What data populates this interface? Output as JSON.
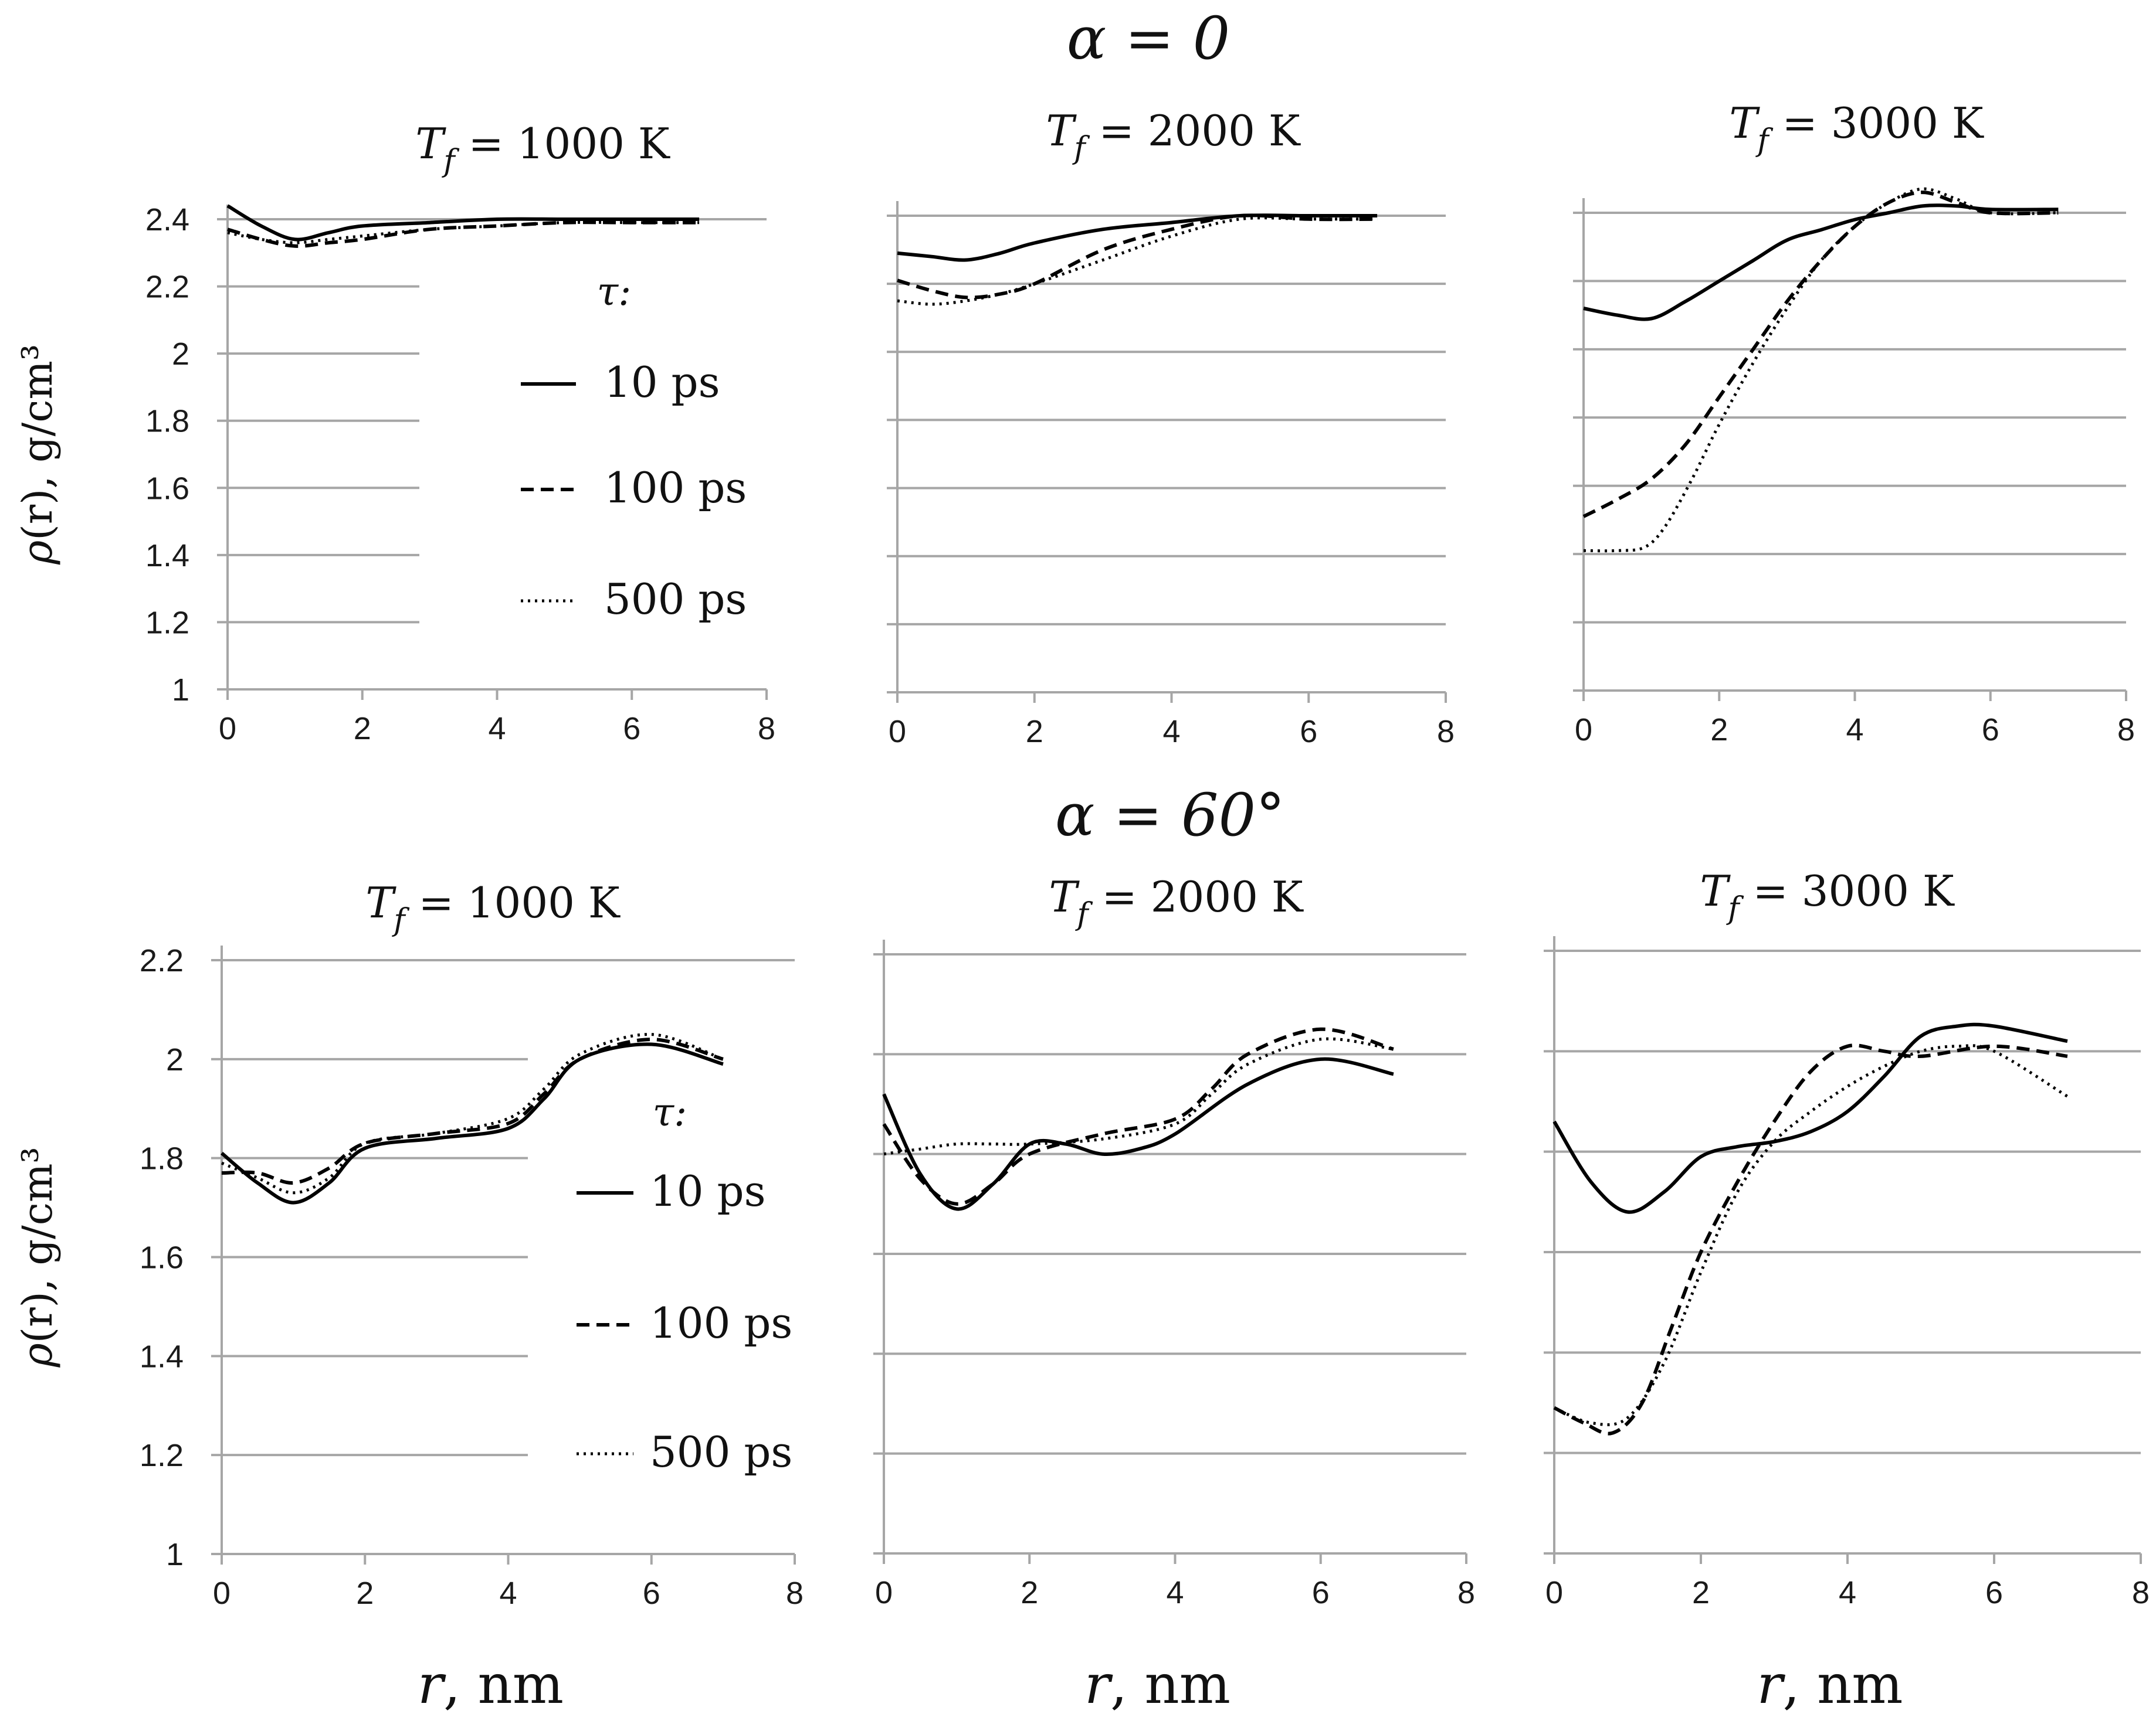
{
  "rows": [
    {
      "title": "α = 0"
    },
    {
      "title": "α = 60°"
    }
  ],
  "legend_title": "τ:",
  "chart_data": [
    {
      "type": "line",
      "row": 0,
      "col": 0,
      "title": "T_f = 1000 K",
      "title_var": "T",
      "title_sub": "f",
      "title_rest": " = 1000 K",
      "xlabel": "",
      "ylabel_sym": "ρ",
      "ylabel_rest": "(r), g/cm³",
      "xlim": [
        0,
        8
      ],
      "ylim": [
        1,
        2.4
      ],
      "xticks": [
        0,
        2,
        4,
        6,
        8
      ],
      "xtick_labels": [
        "0",
        "2",
        "4",
        "6",
        "8"
      ],
      "yticks": [
        1,
        1.2,
        1.4,
        1.6,
        1.8,
        2,
        2.2,
        2.4
      ],
      "ytick_labels": [
        "1",
        "1.2",
        "1.4",
        "1.6",
        "1.8",
        "2",
        "2.2",
        "2.4"
      ],
      "legend": true,
      "series": [
        {
          "name": "10 ps",
          "style": "solid",
          "x": [
            0,
            0.5,
            1,
            1.5,
            2,
            3,
            4,
            5,
            6,
            7
          ],
          "values": [
            2.44,
            2.38,
            2.34,
            2.36,
            2.38,
            2.39,
            2.4,
            2.4,
            2.4,
            2.4
          ]
        },
        {
          "name": "100 ps",
          "style": "dashed",
          "x": [
            0,
            0.5,
            1,
            1.5,
            2,
            3,
            4,
            5,
            6,
            7
          ],
          "values": [
            2.37,
            2.34,
            2.32,
            2.33,
            2.34,
            2.37,
            2.38,
            2.39,
            2.39,
            2.39
          ]
        },
        {
          "name": "500 ps",
          "style": "dotted",
          "x": [
            0,
            0.5,
            1,
            1.5,
            2,
            3,
            4,
            5,
            6,
            7
          ],
          "values": [
            2.36,
            2.34,
            2.33,
            2.34,
            2.35,
            2.37,
            2.38,
            2.39,
            2.39,
            2.39
          ]
        }
      ]
    },
    {
      "type": "line",
      "row": 0,
      "col": 1,
      "title": "T_f = 2000 K",
      "title_var": "T",
      "title_sub": "f",
      "title_rest": " = 2000 K",
      "xlabel": "",
      "ylabel_sym": "",
      "ylabel_rest": "",
      "xlim": [
        0,
        8
      ],
      "ylim": [
        1,
        2.4
      ],
      "xticks": [
        0,
        2,
        4,
        6,
        8
      ],
      "xtick_labels": [
        "0",
        "2",
        "4",
        "6",
        "8"
      ],
      "yticks": [
        1,
        1.2,
        1.4,
        1.6,
        1.8,
        2,
        2.2,
        2.4
      ],
      "ytick_labels": [],
      "legend": false,
      "series": [
        {
          "name": "10 ps",
          "style": "solid",
          "x": [
            0,
            0.5,
            1,
            1.5,
            2,
            3,
            4,
            5,
            6,
            7
          ],
          "values": [
            2.29,
            2.28,
            2.27,
            2.29,
            2.32,
            2.36,
            2.38,
            2.4,
            2.4,
            2.4
          ]
        },
        {
          "name": "100 ps",
          "style": "dashed",
          "x": [
            0,
            0.5,
            1,
            1.5,
            2,
            3,
            4,
            5,
            6,
            7
          ],
          "values": [
            2.21,
            2.18,
            2.16,
            2.17,
            2.2,
            2.3,
            2.36,
            2.4,
            2.39,
            2.39
          ]
        },
        {
          "name": "500 ps",
          "style": "dotted",
          "x": [
            0,
            0.5,
            1,
            1.5,
            2,
            3,
            4,
            5,
            6,
            7
          ],
          "values": [
            2.15,
            2.14,
            2.15,
            2.17,
            2.2,
            2.27,
            2.34,
            2.39,
            2.39,
            2.39
          ]
        }
      ]
    },
    {
      "type": "line",
      "row": 0,
      "col": 2,
      "title": "T_f = 3000 K",
      "title_var": "T",
      "title_sub": "f",
      "title_rest": " = 3000 K",
      "xlabel": "",
      "ylabel_sym": "",
      "ylabel_rest": "",
      "xlim": [
        0,
        8
      ],
      "ylim": [
        1,
        2.4
      ],
      "xticks": [
        0,
        2,
        4,
        6,
        8
      ],
      "xtick_labels": [
        "0",
        "2",
        "4",
        "6",
        "8"
      ],
      "yticks": [
        1,
        1.2,
        1.4,
        1.6,
        1.8,
        2,
        2.2,
        2.4
      ],
      "ytick_labels": [],
      "legend": false,
      "series": [
        {
          "name": "10 ps",
          "style": "solid",
          "x": [
            0,
            0.5,
            1,
            1.5,
            2,
            2.5,
            3,
            3.5,
            4,
            4.5,
            5,
            5.5,
            6,
            7
          ],
          "values": [
            2.12,
            2.1,
            2.09,
            2.14,
            2.2,
            2.26,
            2.32,
            2.35,
            2.38,
            2.4,
            2.42,
            2.42,
            2.41,
            2.41
          ]
        },
        {
          "name": "100 ps",
          "style": "dashed",
          "x": [
            0,
            0.5,
            1,
            1.5,
            2,
            2.5,
            3,
            3.5,
            4,
            4.5,
            5,
            5.5,
            6,
            7
          ],
          "values": [
            1.51,
            1.56,
            1.62,
            1.72,
            1.86,
            2.0,
            2.14,
            2.26,
            2.36,
            2.43,
            2.46,
            2.43,
            2.4,
            2.4
          ]
        },
        {
          "name": "500 ps",
          "style": "dotted",
          "x": [
            0,
            0.5,
            0.9,
            1.2,
            1.6,
            2,
            2.5,
            3,
            3.5,
            4,
            4.5,
            5,
            5.5,
            6,
            7
          ],
          "values": [
            1.41,
            1.41,
            1.42,
            1.48,
            1.62,
            1.78,
            1.96,
            2.12,
            2.26,
            2.36,
            2.43,
            2.47,
            2.44,
            2.4,
            2.4
          ]
        }
      ]
    },
    {
      "type": "line",
      "row": 1,
      "col": 0,
      "title": "T_f = 1000 K",
      "title_var": "T",
      "title_sub": "f",
      "title_rest": " = 1000 K",
      "xlabel_sym": "r",
      "xlabel_rest": ", nm",
      "ylabel_sym": "ρ",
      "ylabel_rest": "(r), g/cm³",
      "xlim": [
        0,
        8
      ],
      "ylim": [
        1,
        2.2
      ],
      "xticks": [
        0,
        2,
        4,
        6,
        8
      ],
      "xtick_labels": [
        "0",
        "2",
        "4",
        "6",
        "8"
      ],
      "yticks": [
        1,
        1.2,
        1.4,
        1.6,
        1.8,
        2,
        2.2
      ],
      "ytick_labels": [
        "1",
        "1.2",
        "1.4",
        "1.6",
        "1.8",
        "2",
        "2.2"
      ],
      "legend": true,
      "series": [
        {
          "name": "10 ps",
          "style": "solid",
          "x": [
            0,
            0.5,
            1,
            1.5,
            2,
            3,
            4,
            4.5,
            5,
            6,
            7
          ],
          "values": [
            1.81,
            1.75,
            1.71,
            1.75,
            1.82,
            1.84,
            1.86,
            1.92,
            2.0,
            2.03,
            1.99
          ]
        },
        {
          "name": "100 ps",
          "style": "dashed",
          "x": [
            0,
            0.5,
            1,
            1.5,
            2,
            3,
            4,
            4.5,
            5,
            6,
            7
          ],
          "values": [
            1.77,
            1.77,
            1.75,
            1.78,
            1.83,
            1.85,
            1.87,
            1.93,
            2.0,
            2.04,
            2.0
          ]
        },
        {
          "name": "500 ps",
          "style": "dotted",
          "x": [
            0,
            0.5,
            1,
            1.5,
            2,
            3,
            4,
            4.5,
            5,
            6,
            7
          ],
          "values": [
            1.79,
            1.76,
            1.73,
            1.76,
            1.83,
            1.85,
            1.88,
            1.94,
            2.01,
            2.05,
            2.0
          ]
        }
      ]
    },
    {
      "type": "line",
      "row": 1,
      "col": 1,
      "title": "T_f = 2000 K",
      "title_var": "T",
      "title_sub": "f",
      "title_rest": " = 2000 K",
      "xlabel_sym": "r",
      "xlabel_rest": ", nm",
      "ylabel_sym": "",
      "ylabel_rest": "",
      "xlim": [
        0,
        8
      ],
      "ylim": [
        1,
        2.2
      ],
      "xticks": [
        0,
        2,
        4,
        6,
        8
      ],
      "xtick_labels": [
        "0",
        "2",
        "4",
        "6",
        "8"
      ],
      "yticks": [
        1,
        1.2,
        1.4,
        1.6,
        1.8,
        2,
        2.2
      ],
      "ytick_labels": [],
      "legend": false,
      "series": [
        {
          "name": "10 ps",
          "style": "solid",
          "x": [
            0,
            0.5,
            1,
            1.5,
            2,
            2.5,
            3,
            3.5,
            4,
            5,
            6,
            7
          ],
          "values": [
            1.92,
            1.76,
            1.69,
            1.74,
            1.82,
            1.82,
            1.8,
            1.81,
            1.84,
            1.94,
            1.99,
            1.96
          ]
        },
        {
          "name": "100 ps",
          "style": "dashed",
          "x": [
            0,
            0.5,
            1,
            1.5,
            2,
            3,
            4,
            4.5,
            5,
            6,
            7
          ],
          "values": [
            1.86,
            1.75,
            1.7,
            1.74,
            1.8,
            1.84,
            1.87,
            1.93,
            2.0,
            2.05,
            2.01
          ]
        },
        {
          "name": "500 ps",
          "style": "dotted",
          "x": [
            0,
            0.5,
            1,
            1.5,
            2,
            3,
            4,
            4.5,
            5,
            6,
            7
          ],
          "values": [
            1.8,
            1.81,
            1.82,
            1.82,
            1.82,
            1.83,
            1.86,
            1.92,
            1.98,
            2.03,
            2.01
          ]
        }
      ]
    },
    {
      "type": "line",
      "row": 1,
      "col": 2,
      "title": "T_f = 3000 K",
      "title_var": "T",
      "title_sub": "f",
      "title_rest": " = 3000 K",
      "xlabel_sym": "r",
      "xlabel_rest": ", nm",
      "ylabel_sym": "",
      "ylabel_rest": "",
      "xlim": [
        0,
        8
      ],
      "ylim": [
        1,
        2.2
      ],
      "xticks": [
        0,
        2,
        4,
        6,
        8
      ],
      "xtick_labels": [
        "0",
        "2",
        "4",
        "6",
        "8"
      ],
      "yticks": [
        1,
        1.2,
        1.4,
        1.6,
        1.8,
        2,
        2.2
      ],
      "ytick_labels": [],
      "legend": false,
      "series": [
        {
          "name": "10 ps",
          "style": "solid",
          "x": [
            0,
            0.5,
            1,
            1.5,
            2,
            2.5,
            3,
            3.5,
            4,
            4.5,
            5,
            5.5,
            6,
            7
          ],
          "values": [
            1.86,
            1.74,
            1.68,
            1.72,
            1.79,
            1.81,
            1.82,
            1.84,
            1.88,
            1.95,
            2.03,
            2.05,
            2.05,
            2.02
          ]
        },
        {
          "name": "100 ps",
          "style": "dashed",
          "x": [
            0,
            0.4,
            0.8,
            1.2,
            1.6,
            2,
            2.5,
            3,
            3.5,
            4,
            4.5,
            5,
            6,
            7
          ],
          "values": [
            1.29,
            1.26,
            1.24,
            1.3,
            1.45,
            1.6,
            1.74,
            1.86,
            1.96,
            2.01,
            2.0,
            1.99,
            2.01,
            1.99
          ]
        },
        {
          "name": "500 ps",
          "style": "dotted",
          "x": [
            0,
            0.5,
            1,
            1.5,
            2,
            2.5,
            3,
            3.5,
            4,
            4.5,
            5,
            5.5,
            6,
            7
          ],
          "values": [
            1.29,
            1.26,
            1.27,
            1.38,
            1.56,
            1.72,
            1.82,
            1.88,
            1.93,
            1.97,
            2.0,
            2.01,
            2.0,
            1.91
          ]
        }
      ]
    }
  ]
}
